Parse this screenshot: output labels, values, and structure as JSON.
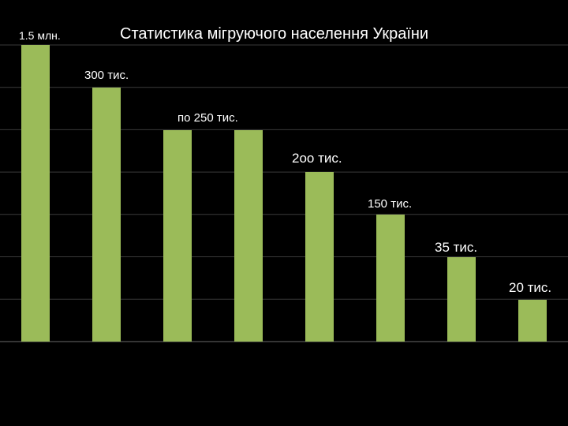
{
  "chart_data": {
    "type": "bar",
    "title": "Статистика мігруючого  населення  України",
    "categories": [
      "",
      "",
      "",
      "",
      "",
      "",
      "",
      ""
    ],
    "values": [
      1500,
      300,
      250,
      250,
      200,
      150,
      35,
      20
    ],
    "data_labels": [
      "1.5 млн.",
      "300 тис.",
      "по 250 тис.",
      "",
      "2оо тис.",
      "150 тис.",
      "35 тис.",
      "20 тис."
    ],
    "xlabel": "",
    "ylabel": "",
    "ylim": [
      0,
      1500
    ],
    "scale": "broken/non-linear as drawn",
    "grid": "horizontal",
    "legend": "none"
  },
  "colors": {
    "background": "#000000",
    "bar": "#9BBB59",
    "grid": "#3a3a3a",
    "axis": "#6a6a6a",
    "text": "#ffffff"
  }
}
